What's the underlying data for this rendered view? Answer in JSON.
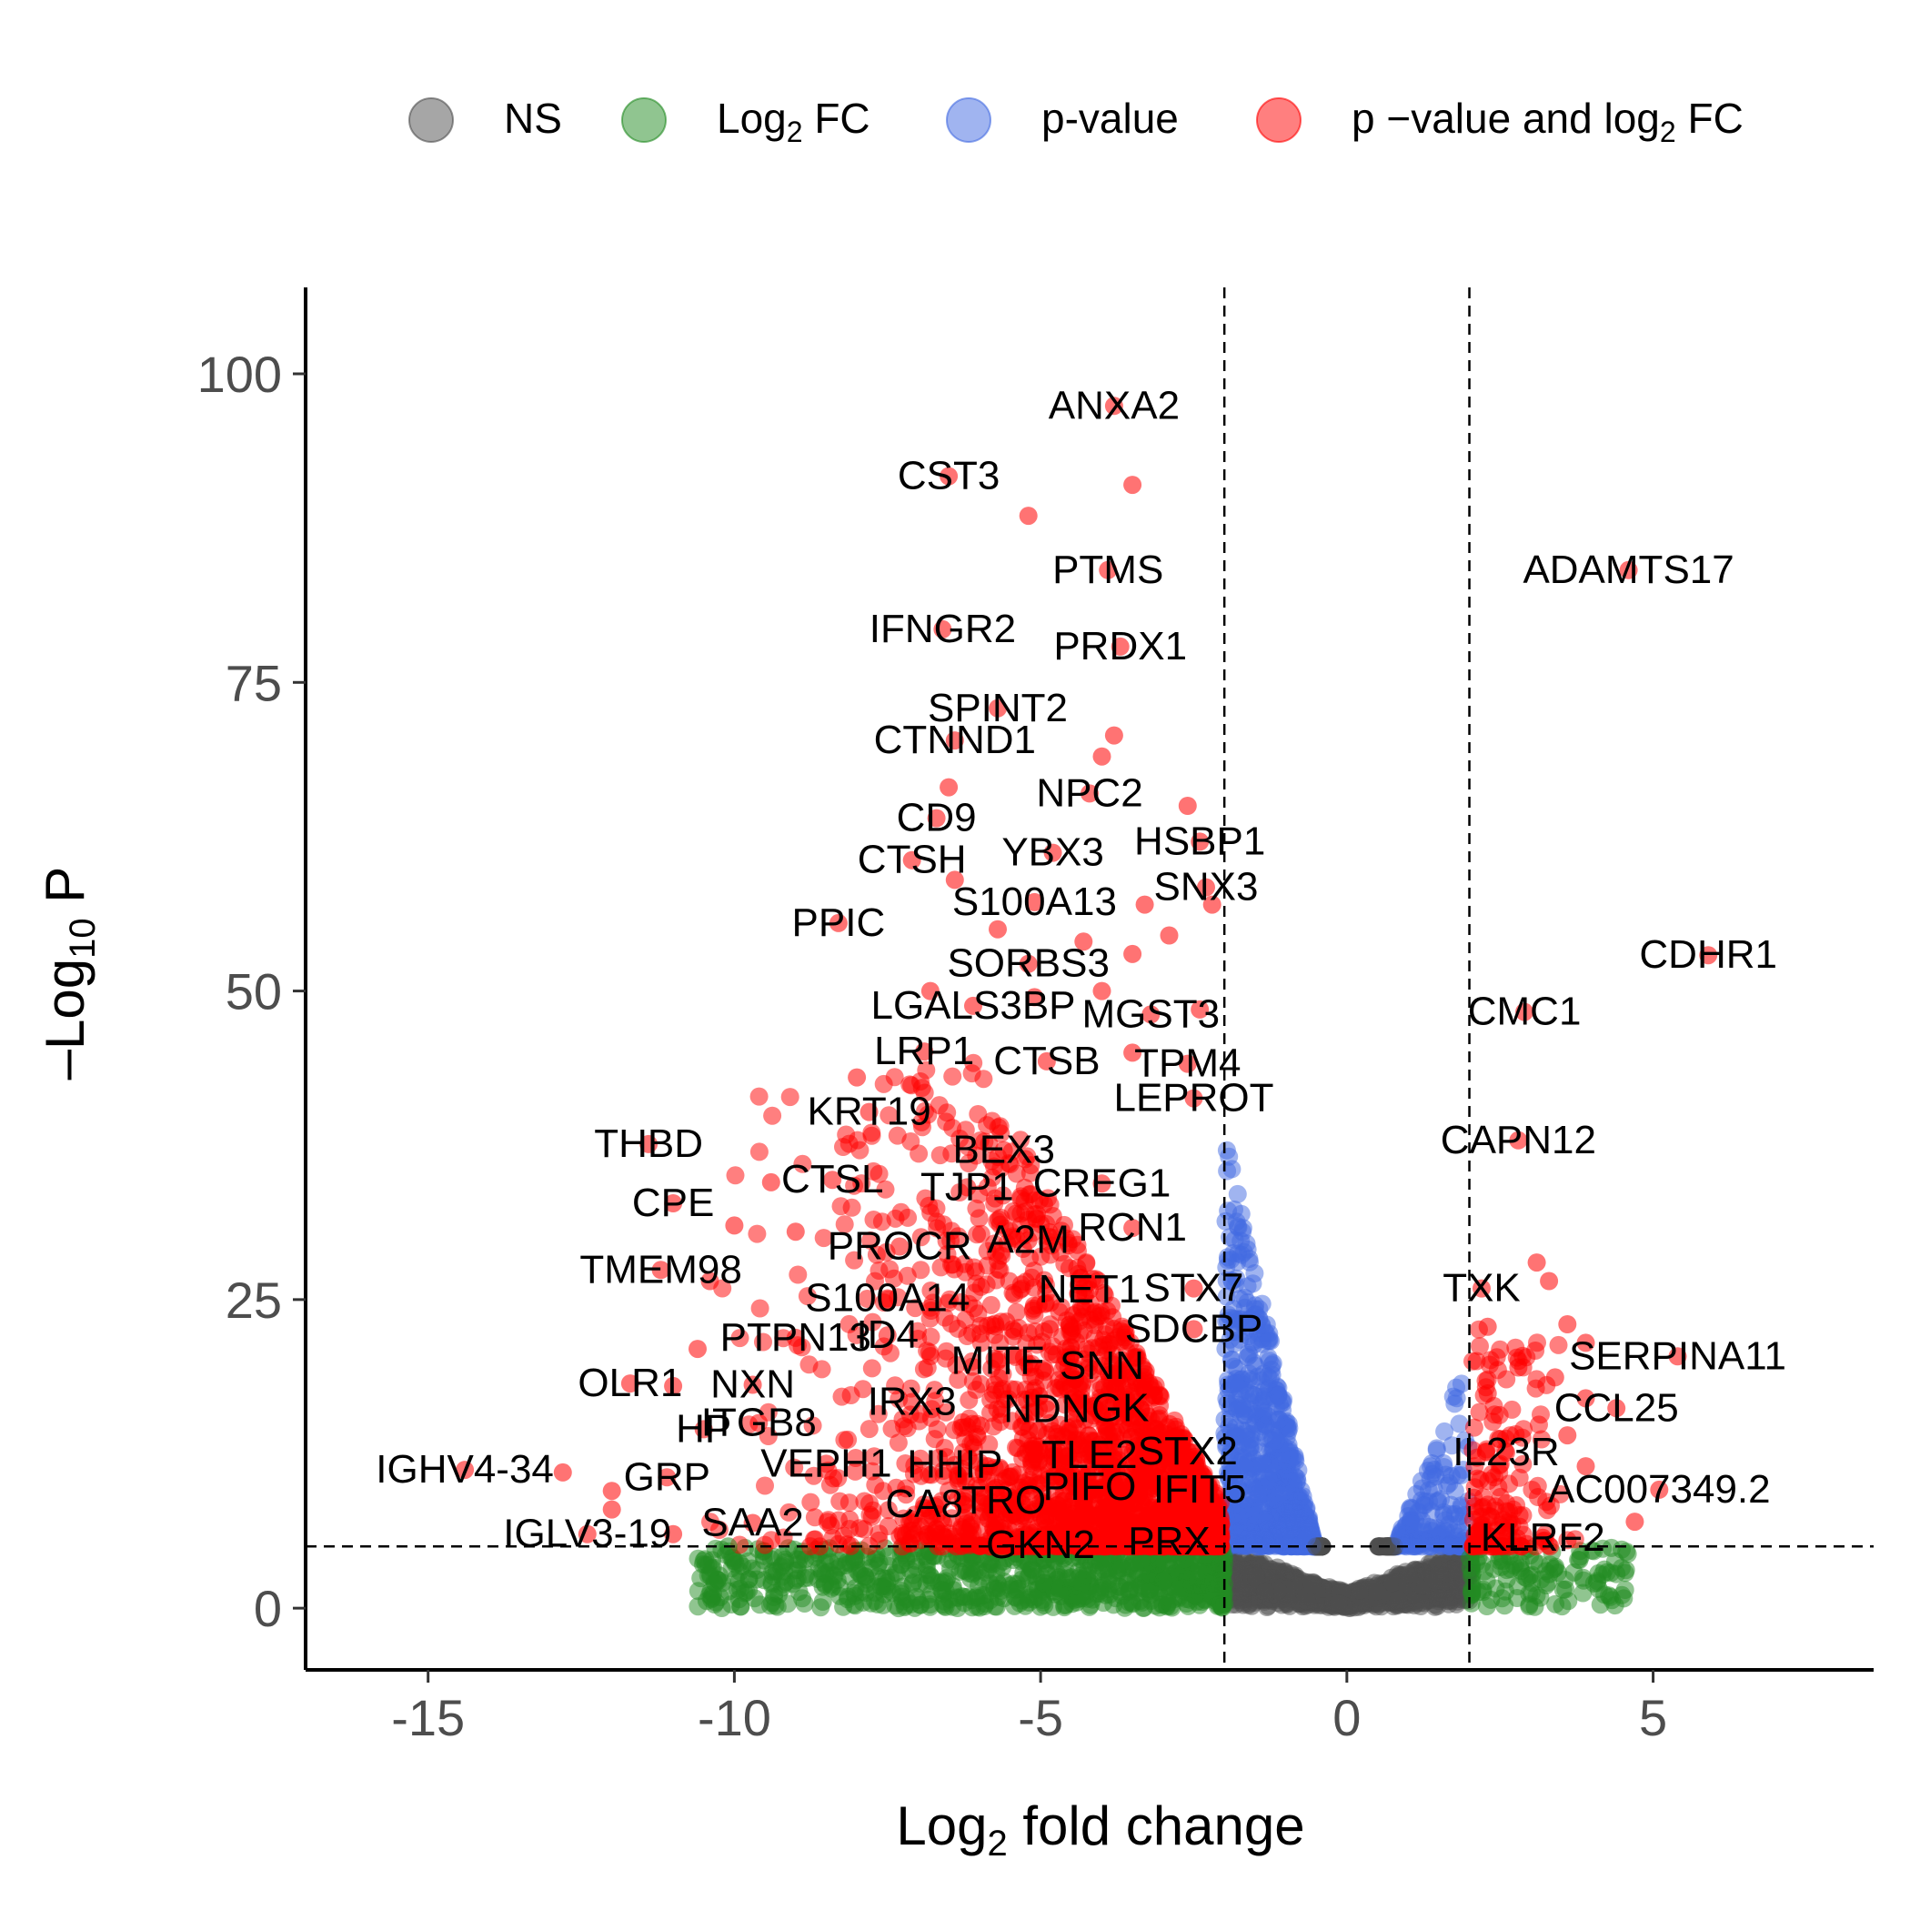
{
  "chart_data": {
    "type": "scatter",
    "title": "",
    "xlabel": "Log",
    "xlabel_sub": "2",
    "xlabel_rest": " fold change",
    "ylabel": "–Log",
    "ylabel_sub": "10",
    "ylabel_rest": " P",
    "xlim": [
      -17,
      8.6
    ],
    "ylim": [
      -5,
      107
    ],
    "x_ticks": [
      -15,
      -10,
      -5,
      0,
      5
    ],
    "x_tick_labels": [
      "-15",
      "-10",
      "-5",
      "0",
      "5"
    ],
    "y_ticks": [
      0,
      25,
      50,
      75,
      100
    ],
    "y_tick_labels": [
      "0",
      "25",
      "50",
      "75",
      "100"
    ],
    "grid": false,
    "legend_position": "top",
    "fc_cutoffs": [
      -2,
      2
    ],
    "p_cutoff": 5,
    "legend": [
      {
        "label": "NS",
        "sub": "",
        "rest": "",
        "color": "#4d4d4d"
      },
      {
        "label": "Log",
        "sub": "2",
        "rest": " FC",
        "color": "#228b22"
      },
      {
        "label": "p-value",
        "sub": "",
        "rest": "",
        "color": "#4169e1"
      },
      {
        "label": "p −value and log",
        "sub": "2",
        "rest": " FC",
        "color": "#ff0000"
      }
    ],
    "colors": {
      "NS": "#4d4d4d",
      "FC": "#228b22",
      "P": "#4169e1",
      "FC_P": "#ff0000"
    },
    "labeled_genes": [
      {
        "gene": "ANXA2",
        "x": -3.8,
        "y": 97.4
      },
      {
        "gene": "CST3",
        "x": -6.5,
        "y": 91.7
      },
      {
        "gene": "PTMS",
        "x": -3.9,
        "y": 84.1
      },
      {
        "gene": "ADAMTS17",
        "x": 4.6,
        "y": 84.1
      },
      {
        "gene": "IFNGR2",
        "x": -6.6,
        "y": 79.3
      },
      {
        "gene": "PRDX1",
        "x": -3.7,
        "y": 77.9
      },
      {
        "gene": "SPINT2",
        "x": -5.7,
        "y": 72.9
      },
      {
        "gene": "CTNND1",
        "x": -6.4,
        "y": 70.3
      },
      {
        "gene": "NPC2",
        "x": -4.2,
        "y": 66.0
      },
      {
        "gene": "CD9",
        "x": -6.7,
        "y": 64.0
      },
      {
        "gene": "HSBP1",
        "x": -2.4,
        "y": 62.1
      },
      {
        "gene": "YBX3",
        "x": -4.8,
        "y": 61.2
      },
      {
        "gene": "CTSH",
        "x": -7.1,
        "y": 60.6
      },
      {
        "gene": "SNX3",
        "x": -2.3,
        "y": 58.4
      },
      {
        "gene": "S100A13",
        "x": -5.1,
        "y": 57.2
      },
      {
        "gene": "PPIC",
        "x": -8.3,
        "y": 55.5
      },
      {
        "gene": "CDHR1",
        "x": 5.9,
        "y": 52.9
      },
      {
        "gene": "SORBS3",
        "x": -5.2,
        "y": 52.2
      },
      {
        "gene": "LGALS3BP",
        "x": -6.1,
        "y": 48.8
      },
      {
        "gene": "MGST3",
        "x": -3.2,
        "y": 48.1
      },
      {
        "gene": "CMC1",
        "x": 2.9,
        "y": 48.3
      },
      {
        "gene": "LRP1",
        "x": -6.9,
        "y": 45.1
      },
      {
        "gene": "TPM4",
        "x": -2.6,
        "y": 44.1
      },
      {
        "gene": "CTSB",
        "x": -4.9,
        "y": 44.3
      },
      {
        "gene": "LEPROT",
        "x": -2.5,
        "y": 41.3
      },
      {
        "gene": "KRT19",
        "x": -7.8,
        "y": 40.2
      },
      {
        "gene": "THBD",
        "x": -11.4,
        "y": 37.6
      },
      {
        "gene": "CAPN12",
        "x": 2.8,
        "y": 37.9
      },
      {
        "gene": "BEX3",
        "x": -5.6,
        "y": 37.1
      },
      {
        "gene": "CTSL",
        "x": -8.4,
        "y": 34.7
      },
      {
        "gene": "TJP1",
        "x": -6.2,
        "y": 34.1
      },
      {
        "gene": "CREG1",
        "x": -4.0,
        "y": 34.4
      },
      {
        "gene": "CPE",
        "x": -11.0,
        "y": 32.8
      },
      {
        "gene": "PROCR",
        "x": -7.3,
        "y": 29.3
      },
      {
        "gene": "A2M",
        "x": -5.2,
        "y": 29.8
      },
      {
        "gene": "RCN1",
        "x": -3.5,
        "y": 30.8
      },
      {
        "gene": "TMEM98",
        "x": -11.2,
        "y": 27.4
      },
      {
        "gene": "S100A14",
        "x": -7.5,
        "y": 25.1
      },
      {
        "gene": "NET1",
        "x": -4.2,
        "y": 25.8
      },
      {
        "gene": "STX7",
        "x": -2.5,
        "y": 25.9
      },
      {
        "gene": "TXK",
        "x": 2.2,
        "y": 25.9
      },
      {
        "gene": "PTPN13",
        "x": -9.0,
        "y": 21.9
      },
      {
        "gene": "ID4",
        "x": -7.5,
        "y": 22.1
      },
      {
        "gene": "SDCBP",
        "x": -2.5,
        "y": 22.6
      },
      {
        "gene": "SERPINA11",
        "x": 5.4,
        "y": 20.4
      },
      {
        "gene": "MITF",
        "x": -5.7,
        "y": 20.0
      },
      {
        "gene": "SNN",
        "x": -4.0,
        "y": 19.6
      },
      {
        "gene": "OLR1",
        "x": -11.7,
        "y": 18.2
      },
      {
        "gene": "NXN",
        "x": -9.7,
        "y": 18.1
      },
      {
        "gene": "IRX3",
        "x": -7.1,
        "y": 16.7
      },
      {
        "gene": "NDN",
        "x": -4.9,
        "y": 16.1
      },
      {
        "gene": "GK",
        "x": -3.7,
        "y": 16.2
      },
      {
        "gene": "CCL25",
        "x": 4.4,
        "y": 16.2
      },
      {
        "gene": "HP",
        "x": -10.5,
        "y": 14.5
      },
      {
        "gene": "ITGB8",
        "x": -9.6,
        "y": 15.0
      },
      {
        "gene": "TLE2",
        "x": -4.2,
        "y": 12.4
      },
      {
        "gene": "STX2",
        "x": -2.6,
        "y": 12.7
      },
      {
        "gene": "IL23R",
        "x": 2.6,
        "y": 12.6
      },
      {
        "gene": "IGHV4-34",
        "x": -14.4,
        "y": 11.2
      },
      {
        "gene": "VEPH1",
        "x": -8.5,
        "y": 11.7
      },
      {
        "gene": "HHIP",
        "x": -6.4,
        "y": 11.6
      },
      {
        "gene": "GRP",
        "x": -11.1,
        "y": 10.6
      },
      {
        "gene": "PIFO",
        "x": -4.2,
        "y": 9.8
      },
      {
        "gene": "IFIT5",
        "x": -2.4,
        "y": 9.6
      },
      {
        "gene": "AC007349.2",
        "x": 5.1,
        "y": 9.6
      },
      {
        "gene": "TRO",
        "x": -5.6,
        "y": 8.7
      },
      {
        "gene": "CA8",
        "x": -6.9,
        "y": 8.4
      },
      {
        "gene": "SAA2",
        "x": -9.7,
        "y": 6.9
      },
      {
        "gene": "IGLV3-19",
        "x": -12.4,
        "y": 6.0
      },
      {
        "gene": "GKN2",
        "x": -5.0,
        "y": 5.1
      },
      {
        "gene": "PRX",
        "x": -2.9,
        "y": 5.4
      },
      {
        "gene": "KLRF2",
        "x": 3.2,
        "y": 5.7
      }
    ],
    "extra_points": [
      {
        "x": -3.5,
        "y": 91.0
      },
      {
        "x": -5.2,
        "y": 88.5
      },
      {
        "x": -3.8,
        "y": 70.7
      },
      {
        "x": -4.0,
        "y": 69.0
      },
      {
        "x": -6.5,
        "y": 66.5
      },
      {
        "x": -2.6,
        "y": 65.0
      },
      {
        "x": -3.3,
        "y": 57.0
      },
      {
        "x": -2.2,
        "y": 57.0
      },
      {
        "x": -5.7,
        "y": 55.0
      },
      {
        "x": -6.4,
        "y": 59.0
      },
      {
        "x": -4.3,
        "y": 54.0
      },
      {
        "x": -2.9,
        "y": 54.5
      },
      {
        "x": -3.5,
        "y": 53.0
      },
      {
        "x": -6.8,
        "y": 50.0
      },
      {
        "x": -5.1,
        "y": 49.5
      },
      {
        "x": -4.0,
        "y": 50.0
      },
      {
        "x": -8.0,
        "y": 43.0
      },
      {
        "x": -3.5,
        "y": 45.0
      },
      {
        "x": -2.4,
        "y": 48.5
      },
      {
        "x": 3.1,
        "y": 28.0
      },
      {
        "x": 3.3,
        "y": 26.5
      },
      {
        "x": 3.6,
        "y": 23.0
      },
      {
        "x": 2.3,
        "y": 22.8
      },
      {
        "x": 3.9,
        "y": 21.5
      },
      {
        "x": 2.8,
        "y": 19.5
      },
      {
        "x": 3.4,
        "y": 18.7
      },
      {
        "x": 2.3,
        "y": 17.4
      },
      {
        "x": 3.9,
        "y": 17.0
      },
      {
        "x": 3.6,
        "y": 14.0
      },
      {
        "x": 2.5,
        "y": 13.7
      },
      {
        "x": 3.9,
        "y": 11.5
      },
      {
        "x": 4.7,
        "y": 7.0
      },
      {
        "x": -9.4,
        "y": 34.5
      },
      {
        "x": -10.0,
        "y": 31.0
      },
      {
        "x": -9.0,
        "y": 30.5
      },
      {
        "x": -10.4,
        "y": 26.5
      },
      {
        "x": -10.6,
        "y": 21.0
      },
      {
        "x": -11.0,
        "y": 18.0
      },
      {
        "x": -12.0,
        "y": 9.5
      },
      {
        "x": -12.8,
        "y": 11.0
      },
      {
        "x": -11.0,
        "y": 6.0
      },
      {
        "x": -12.0,
        "y": 8.0
      },
      {
        "x": -10.1,
        "y": 5.0
      }
    ]
  }
}
